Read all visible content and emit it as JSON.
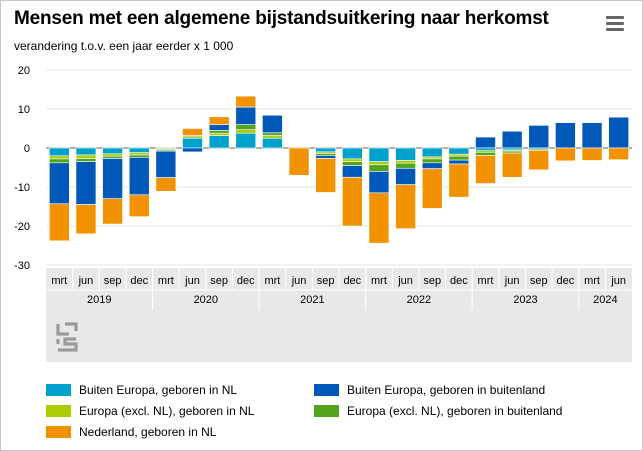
{
  "header": {
    "title": "Mensen met een algemene bijstandsuitkering naar herkomst",
    "subtitle": "verandering t.o.v. een jaar eerder x 1 000",
    "menu_icon": "hamburger-menu-icon"
  },
  "colors": {
    "buiten_nl": "#00A1CD",
    "europa_nl": "#AFCB05",
    "nederland": "#F39200",
    "buiten_buitenland": "#0058B8",
    "europa_buitenland": "#53A31D"
  },
  "legend": [
    {
      "label": "Buiten Europa, geboren in NL",
      "color_key": "buiten_nl"
    },
    {
      "label": "Buiten Europa, geboren in buitenland",
      "color_key": "buiten_buitenland"
    },
    {
      "label": "Europa (excl. NL), geboren in NL",
      "color_key": "europa_nl"
    },
    {
      "label": "Europa (excl. NL), geboren in buitenland",
      "color_key": "europa_buitenland"
    },
    {
      "label": "Nederland, geboren in NL",
      "color_key": "nederland"
    }
  ],
  "logo": {
    "icon": "cbs-logo-icon"
  },
  "chart_data": {
    "type": "bar",
    "stacked": true,
    "title": "Mensen met een algemene bijstandsuitkering naar herkomst",
    "ylabel": "verandering t.o.v. een jaar eerder x 1 000",
    "ylim": [
      -30,
      20
    ],
    "yticks": [
      20,
      10,
      0,
      -10,
      -20,
      -30
    ],
    "grid": true,
    "categories": [
      "mrt",
      "jun",
      "sep",
      "dec",
      "mrt",
      "jun",
      "sep",
      "dec",
      "mrt",
      "jun",
      "sep",
      "dec",
      "mrt",
      "jun",
      "sep",
      "dec",
      "mrt",
      "jun",
      "sep",
      "dec",
      "mrt",
      "jun"
    ],
    "year_groups": [
      {
        "year": "2019",
        "count": 4
      },
      {
        "year": "2020",
        "count": 4
      },
      {
        "year": "2021",
        "count": 4
      },
      {
        "year": "2022",
        "count": 4
      },
      {
        "year": "2023",
        "count": 4
      },
      {
        "year": "2024",
        "count": 2
      }
    ],
    "series": [
      {
        "name": "Buiten Europa, geboren in NL",
        "color_key": "buiten_nl",
        "values": [
          -2.0,
          -1.8,
          -1.5,
          -1.2,
          -0.2,
          2.5,
          3.2,
          3.8,
          2.5,
          0,
          -1.0,
          -2.8,
          -3.5,
          -3.2,
          -2.3,
          -1.6,
          -0.7,
          -0.5,
          -0.3,
          0,
          0,
          0
        ]
      },
      {
        "name": "Buiten Europa, geboren in buitenland",
        "color_key": "buiten_buitenland",
        "values": [
          -10.5,
          -11.0,
          -10.3,
          -9.6,
          -6.8,
          -1.0,
          1.5,
          4.5,
          4.5,
          0,
          -0.8,
          -3.0,
          -5.5,
          -4.2,
          -1.5,
          -1.0,
          2.8,
          4.3,
          5.8,
          6.5,
          6.5,
          7.9
        ]
      },
      {
        "name": "Europa (excl. NL), geboren in NL",
        "color_key": "europa_nl",
        "values": [
          -0.8,
          -0.9,
          -0.6,
          -0.6,
          -0.3,
          0.4,
          0.6,
          0.9,
          0.7,
          0,
          -0.4,
          -0.7,
          -0.8,
          -0.7,
          -0.5,
          -0.5,
          -0.4,
          -0.3,
          0,
          0,
          0,
          0
        ]
      },
      {
        "name": "Europa (excl. NL), geboren in buitenland",
        "color_key": "europa_buitenland",
        "values": [
          -1.0,
          -0.8,
          -0.6,
          -0.6,
          -0.3,
          0.3,
          0.7,
          1.3,
          0.7,
          0,
          -0.5,
          -1.0,
          -1.7,
          -1.3,
          -1.0,
          -1.0,
          -0.8,
          -0.5,
          -0.3,
          0,
          0,
          0
        ]
      },
      {
        "name": "Nederland, geboren in NL",
        "color_key": "nederland",
        "values": [
          -9.5,
          -7.5,
          -6.5,
          -5.6,
          -3.5,
          1.8,
          2.0,
          2.8,
          0,
          -7.0,
          -8.7,
          -12.5,
          -12.9,
          -11.3,
          -10.2,
          -8.5,
          -7.2,
          -6.2,
          -5.0,
          -3.3,
          -3.2,
          -3.0
        ]
      }
    ]
  }
}
